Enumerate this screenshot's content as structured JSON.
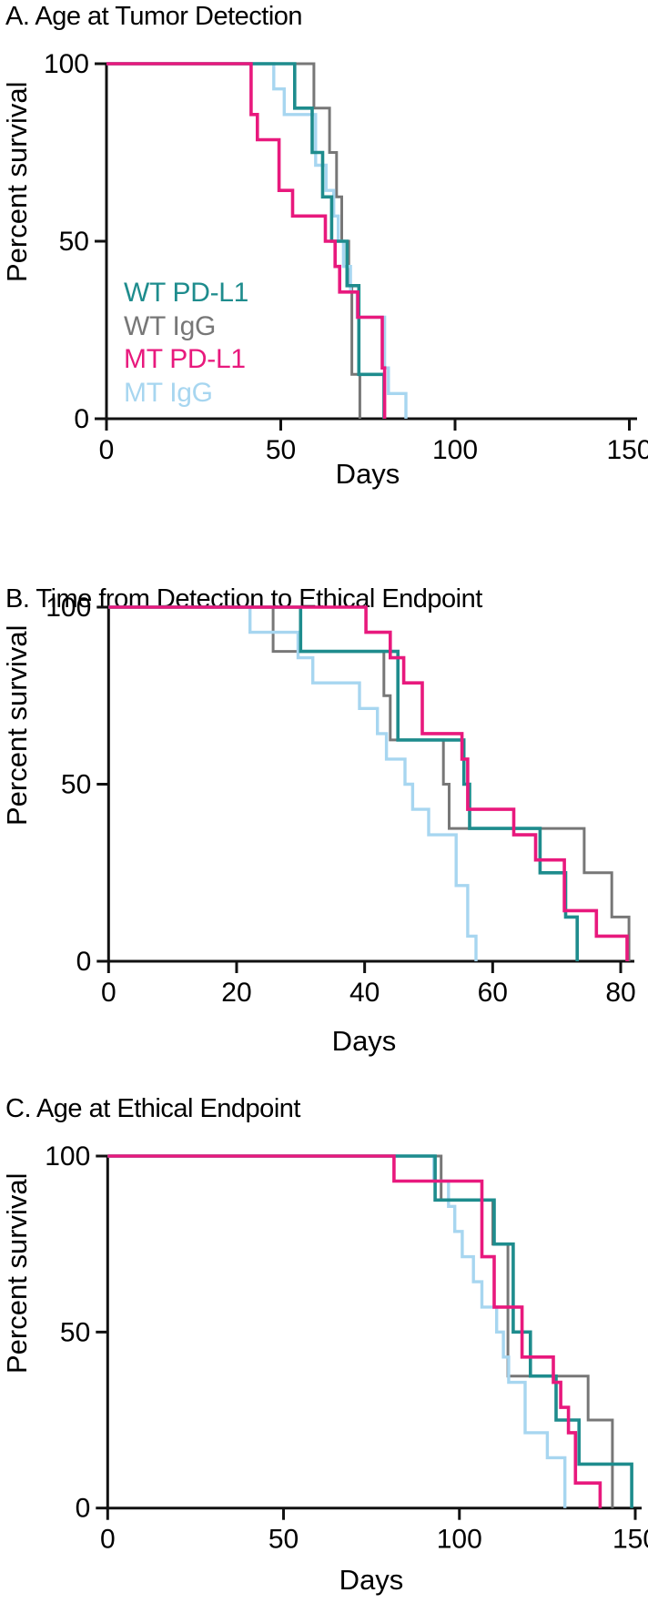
{
  "figure": {
    "xlabel": "Days",
    "ylabel": "Percent survival"
  },
  "legend": {
    "items": [
      {
        "label": "WT PD-L1",
        "color": "#1E8C8D"
      },
      {
        "label": "WT IgG",
        "color": "#777777"
      },
      {
        "label": "MT PD-L1",
        "color": "#E8197D"
      },
      {
        "label": "MT IgG",
        "color": "#A7D6F0"
      }
    ]
  },
  "colors": {
    "axis": "#111111",
    "teal": "#1E8C8D",
    "gray": "#777777",
    "magenta": "#E8197D",
    "lightblue": "#A7D6F0"
  },
  "chart_data": [
    {
      "type": "line",
      "subtype": "kaplan-meier-step",
      "panel": "A",
      "title": "A. Age at Tumor Detection",
      "xlabel": "Days",
      "ylabel": "Percent survival",
      "xlim": [
        0,
        150
      ],
      "ylim": [
        0,
        100
      ],
      "xticks": [
        0,
        50,
        100,
        150
      ],
      "yticks": [
        0,
        50,
        100
      ],
      "grid": false,
      "legend_position": "inside lower-left, colored text only",
      "series": [
        {
          "name": "WT PD-L1",
          "color": "#1E8C8D",
          "points": [
            [
              0,
              100
            ],
            [
              54,
              87.5
            ],
            [
              59,
              75
            ],
            [
              62,
              62.5
            ],
            [
              64.6,
              50
            ],
            [
              69,
              37.5
            ],
            [
              72.4,
              12.5
            ],
            [
              79.6,
              0
            ]
          ]
        },
        {
          "name": "WT IgG",
          "color": "#777777",
          "points": [
            [
              0,
              100
            ],
            [
              59.5,
              87.5
            ],
            [
              64,
              75
            ],
            [
              66,
              62.5
            ],
            [
              67.5,
              50
            ],
            [
              69.5,
              37.5
            ],
            [
              70.4,
              12.5
            ],
            [
              72.7,
              0
            ]
          ]
        },
        {
          "name": "MT PD-L1",
          "color": "#E8197D",
          "points": [
            [
              0,
              100
            ],
            [
              41.5,
              85.7
            ],
            [
              43.3,
              78.6
            ],
            [
              49.5,
              64.3
            ],
            [
              53.4,
              57.1
            ],
            [
              62.8,
              50
            ],
            [
              65.6,
              42.9
            ],
            [
              66.9,
              35.7
            ],
            [
              72.1,
              28.6
            ],
            [
              79.1,
              14.3
            ],
            [
              79.8,
              0
            ]
          ]
        },
        {
          "name": "MT IgG",
          "color": "#A7D6F0",
          "points": [
            [
              0,
              100
            ],
            [
              48,
              92.9
            ],
            [
              51,
              85.7
            ],
            [
              60,
              71.4
            ],
            [
              63,
              64.3
            ],
            [
              65.2,
              57.1
            ],
            [
              66.5,
              50
            ],
            [
              68,
              42.9
            ],
            [
              70,
              35.7
            ],
            [
              71.9,
              28.6
            ],
            [
              79.8,
              14.3
            ],
            [
              80.9,
              7.1
            ],
            [
              85.9,
              0
            ]
          ]
        }
      ]
    },
    {
      "type": "line",
      "subtype": "kaplan-meier-step",
      "panel": "B",
      "title": "B. Time from Detection to Ethical Endpoint",
      "xlabel": "Days",
      "ylabel": "Percent survival",
      "xlim": [
        0,
        80
      ],
      "ylim": [
        0,
        100
      ],
      "xticks": [
        0,
        20,
        40,
        60,
        80
      ],
      "yticks": [
        0,
        50,
        100
      ],
      "grid": false,
      "series": [
        {
          "name": "WT PD-L1",
          "color": "#1E8C8D",
          "points": [
            [
              0,
              100
            ],
            [
              30,
              87.5
            ],
            [
              45.2,
              62.5
            ],
            [
              55.5,
              50
            ],
            [
              56.4,
              37.5
            ],
            [
              67.4,
              25
            ],
            [
              71.4,
              12.5
            ],
            [
              73.2,
              0
            ]
          ]
        },
        {
          "name": "WT IgG",
          "color": "#777777",
          "points": [
            [
              0,
              100
            ],
            [
              25.7,
              87.5
            ],
            [
              43,
              75
            ],
            [
              44,
              62.5
            ],
            [
              52.3,
              50
            ],
            [
              53.2,
              37.5
            ],
            [
              74.3,
              25
            ],
            [
              78.6,
              12.5
            ],
            [
              81.3,
              0
            ]
          ]
        },
        {
          "name": "MT PD-L1",
          "color": "#E8197D",
          "points": [
            [
              0,
              100
            ],
            [
              40.2,
              92.9
            ],
            [
              44,
              85.7
            ],
            [
              46.1,
              78.6
            ],
            [
              49,
              64.3
            ],
            [
              55.2,
              57.1
            ],
            [
              56.1,
              42.9
            ],
            [
              63.3,
              35.7
            ],
            [
              66.7,
              28.6
            ],
            [
              71.2,
              14.3
            ],
            [
              76.2,
              7.1
            ],
            [
              81,
              0
            ]
          ]
        },
        {
          "name": "MT IgG",
          "color": "#A7D6F0",
          "points": [
            [
              0,
              100
            ],
            [
              22.1,
              92.9
            ],
            [
              29.6,
              85.7
            ],
            [
              31.9,
              78.6
            ],
            [
              39.2,
              71.4
            ],
            [
              42,
              64.3
            ],
            [
              43.4,
              57.1
            ],
            [
              46.3,
              50
            ],
            [
              47.5,
              42.9
            ],
            [
              50,
              35.7
            ],
            [
              54.3,
              21.4
            ],
            [
              56.1,
              7.1
            ],
            [
              57.4,
              0
            ]
          ]
        }
      ]
    },
    {
      "type": "line",
      "subtype": "kaplan-meier-step",
      "panel": "C",
      "title": "C. Age at Ethical Endpoint",
      "xlabel": "Days",
      "ylabel": "Percent survival",
      "xlim": [
        0,
        150
      ],
      "ylim": [
        0,
        100
      ],
      "xticks": [
        0,
        50,
        100,
        150
      ],
      "yticks": [
        0,
        50,
        100
      ],
      "grid": false,
      "series": [
        {
          "name": "WT PD-L1",
          "color": "#1E8C8D",
          "points": [
            [
              0,
              100
            ],
            [
              93.1,
              87.5
            ],
            [
              109.9,
              75
            ],
            [
              115.3,
              50
            ],
            [
              120.2,
              37.5
            ],
            [
              127.5,
              25
            ],
            [
              134,
              12.5
            ],
            [
              149,
              0
            ]
          ]
        },
        {
          "name": "WT IgG",
          "color": "#777777",
          "points": [
            [
              0,
              100
            ],
            [
              94.8,
              87.5
            ],
            [
              109.5,
              75
            ],
            [
              113.8,
              37.5
            ],
            [
              136.6,
              25
            ],
            [
              143.5,
              0
            ]
          ]
        },
        {
          "name": "MT PD-L1",
          "color": "#E8197D",
          "points": [
            [
              0,
              100
            ],
            [
              81.4,
              92.9
            ],
            [
              106.4,
              71.4
            ],
            [
              109.9,
              57.1
            ],
            [
              117.8,
              42.9
            ],
            [
              126.7,
              35.7
            ],
            [
              128.8,
              28.6
            ],
            [
              131,
              21.4
            ],
            [
              133,
              7.1
            ],
            [
              140,
              0
            ]
          ]
        },
        {
          "name": "MT IgG",
          "color": "#A7D6F0",
          "points": [
            [
              0,
              100
            ],
            [
              92.7,
              92.9
            ],
            [
              96.9,
              85.7
            ],
            [
              98.7,
              78.6
            ],
            [
              100.8,
              71.4
            ],
            [
              104,
              64.3
            ],
            [
              106.4,
              57.1
            ],
            [
              110.6,
              50
            ],
            [
              112.5,
              42.9
            ],
            [
              114,
              35.7
            ],
            [
              118.7,
              21.4
            ],
            [
              125,
              14.3
            ],
            [
              130,
              0
            ]
          ]
        }
      ]
    }
  ]
}
